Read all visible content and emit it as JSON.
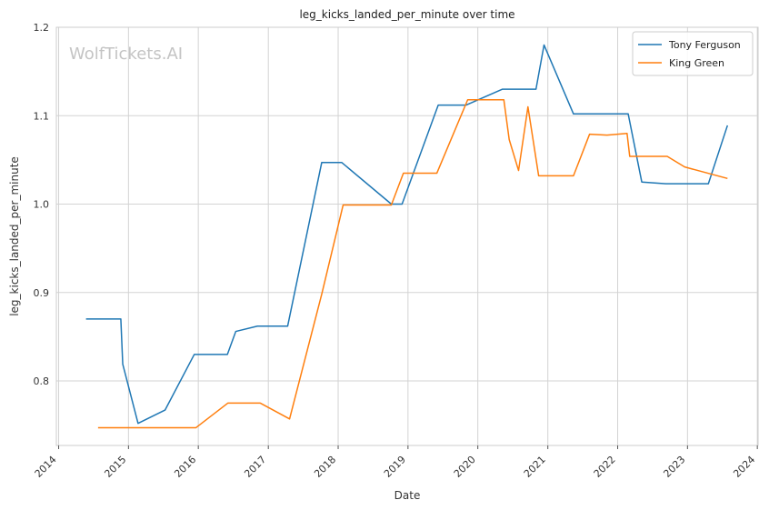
{
  "chart_data": {
    "type": "line",
    "title": "leg_kicks_landed_per_minute over time",
    "xlabel": "Date",
    "ylabel": "leg_kicks_landed_per_minute",
    "watermark": "WolfTickets.AI",
    "xlim": [
      "2013-12-20",
      "2024-01-05"
    ],
    "ylim": [
      0.727,
      1.2
    ],
    "x_ticks": [
      "2014",
      "2015",
      "2016",
      "2017",
      "2018",
      "2019",
      "2020",
      "2021",
      "2022",
      "2023",
      "2024"
    ],
    "y_ticks": [
      0.8,
      0.9,
      1.0,
      1.1,
      1.2
    ],
    "y_tick_labels": [
      "0.8",
      "0.9",
      "1.0",
      "1.1",
      "1.2"
    ],
    "grid": true,
    "legend_position": "top-right",
    "series": [
      {
        "name": "Tony Ferguson",
        "color": "#1f77b4",
        "points": [
          [
            "2014-05-24",
            0.87
          ],
          [
            "2014-11-22",
            0.87
          ],
          [
            "2014-12-02",
            0.819
          ],
          [
            "2015-02-20",
            0.752
          ],
          [
            "2015-07-11",
            0.767
          ],
          [
            "2015-12-11",
            0.83
          ],
          [
            "2016-06-01",
            0.83
          ],
          [
            "2016-07-15",
            0.856
          ],
          [
            "2016-11-05",
            0.862
          ],
          [
            "2017-04-12",
            0.862
          ],
          [
            "2017-10-07",
            1.047
          ],
          [
            "2018-01-20",
            1.047
          ],
          [
            "2018-10-06",
            1.0
          ],
          [
            "2018-12-01",
            1.0
          ],
          [
            "2019-06-08",
            1.112
          ],
          [
            "2019-11-01",
            1.112
          ],
          [
            "2020-05-09",
            1.13
          ],
          [
            "2020-10-31",
            1.13
          ],
          [
            "2020-12-12",
            1.18
          ],
          [
            "2021-05-15",
            1.102
          ],
          [
            "2022-02-25",
            1.102
          ],
          [
            "2022-05-07",
            1.025
          ],
          [
            "2022-09-10",
            1.023
          ],
          [
            "2023-04-20",
            1.023
          ],
          [
            "2023-07-29",
            1.089
          ]
        ]
      },
      {
        "name": "King Green",
        "color": "#ff7f0e",
        "points": [
          [
            "2014-07-26",
            0.747
          ],
          [
            "2015-12-19",
            0.747
          ],
          [
            "2016-06-04",
            0.775
          ],
          [
            "2016-11-19",
            0.775
          ],
          [
            "2017-04-22",
            0.757
          ],
          [
            "2017-10-07",
            0.898
          ],
          [
            "2018-01-27",
            0.999
          ],
          [
            "2018-10-06",
            0.999
          ],
          [
            "2018-12-08",
            1.035
          ],
          [
            "2019-06-01",
            1.035
          ],
          [
            "2019-11-09",
            1.118
          ],
          [
            "2020-05-16",
            1.118
          ],
          [
            "2020-06-13",
            1.073
          ],
          [
            "2020-08-01",
            1.038
          ],
          [
            "2020-09-19",
            1.11
          ],
          [
            "2020-11-14",
            1.032
          ],
          [
            "2021-05-15",
            1.032
          ],
          [
            "2021-08-07",
            1.079
          ],
          [
            "2021-11-06",
            1.078
          ],
          [
            "2022-02-19",
            1.08
          ],
          [
            "2022-03-05",
            1.054
          ],
          [
            "2022-09-17",
            1.054
          ],
          [
            "2022-12-17",
            1.042
          ],
          [
            "2023-07-29",
            1.029
          ]
        ]
      }
    ]
  }
}
